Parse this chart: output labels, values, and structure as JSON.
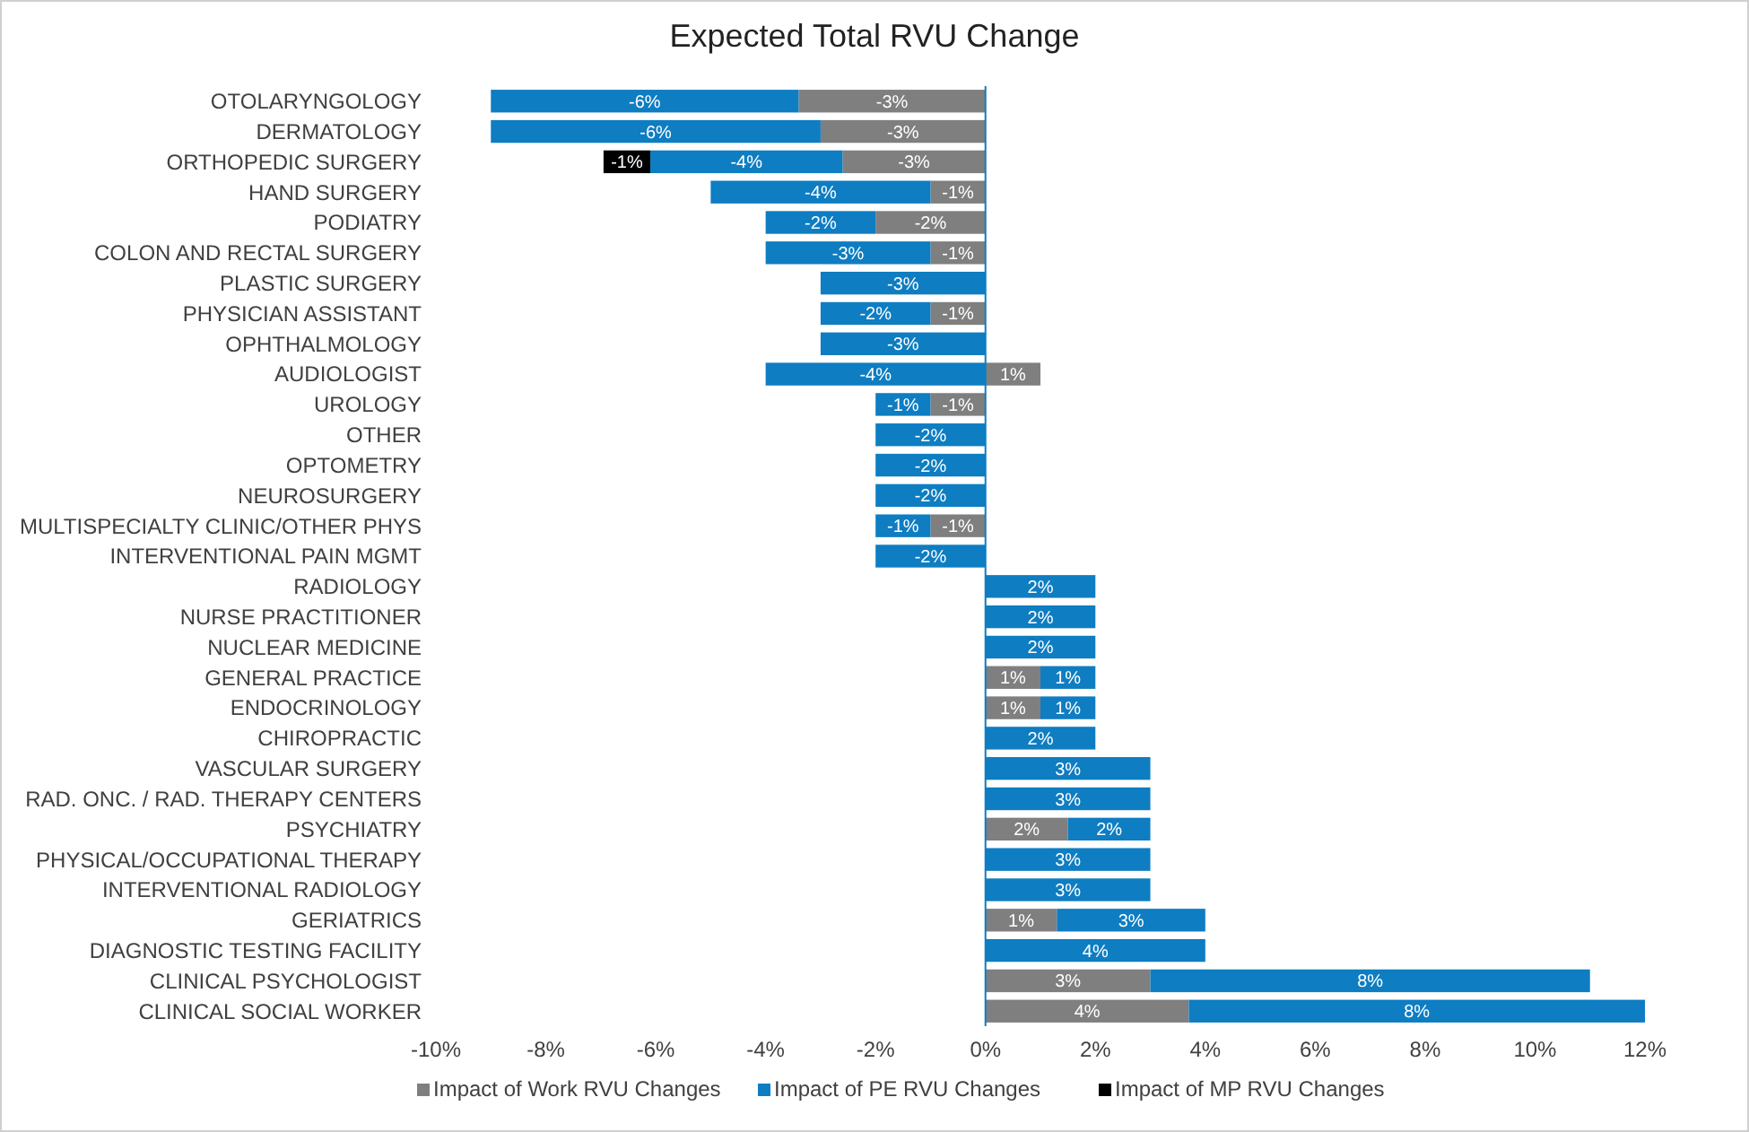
{
  "chart_data": {
    "type": "bar",
    "orientation": "horizontal",
    "stacked": true,
    "title": "Expected Total RVU Change",
    "categories": [
      "OTOLARYNGOLOGY",
      "DERMATOLOGY",
      "ORTHOPEDIC SURGERY",
      "HAND SURGERY",
      "PODIATRY",
      "COLON AND RECTAL SURGERY",
      "PLASTIC SURGERY",
      "PHYSICIAN ASSISTANT",
      "OPHTHALMOLOGY",
      "AUDIOLOGIST",
      "UROLOGY",
      "OTHER",
      "OPTOMETRY",
      "NEUROSURGERY",
      "MULTISPECIALTY CLINIC/OTHER PHYS",
      "INTERVENTIONAL PAIN MGMT",
      "RADIOLOGY",
      "NURSE PRACTITIONER",
      "NUCLEAR MEDICINE",
      "GENERAL PRACTICE",
      "ENDOCRINOLOGY",
      "CHIROPRACTIC",
      "VASCULAR SURGERY",
      "RAD. ONC. / RAD. THERAPY CENTERS",
      "PSYCHIATRY",
      "PHYSICAL/OCCUPATIONAL THERAPY",
      "INTERVENTIONAL RADIOLOGY",
      "GERIATRICS",
      "DIAGNOSTIC TESTING FACILITY",
      "CLINICAL PSYCHOLOGIST",
      "CLINICAL SOCIAL WORKER"
    ],
    "series": [
      {
        "name": "Impact of Work RVU Changes",
        "color": "#7f7f7f",
        "values": [
          -3.4,
          -3,
          -2.6,
          -1,
          -2,
          -1,
          null,
          -1,
          null,
          1,
          -1,
          null,
          null,
          null,
          -1,
          null,
          null,
          null,
          null,
          1,
          1,
          null,
          null,
          null,
          1.5,
          null,
          null,
          1.3,
          null,
          3,
          3.7
        ],
        "value_labels": [
          "-3%",
          "-3%",
          "-3%",
          "-1%",
          "-2%",
          "-1%",
          null,
          "-1%",
          null,
          "1%",
          "-1%",
          null,
          null,
          null,
          "-1%",
          null,
          null,
          null,
          null,
          "1%",
          "1%",
          null,
          null,
          null,
          "2%",
          null,
          null,
          "1%",
          null,
          "3%",
          "4%"
        ]
      },
      {
        "name": "Impact of PE RVU Changes",
        "color": "#0e7dc2",
        "values": [
          -5.6,
          -6,
          -3.5,
          -4,
          -2,
          -3,
          -3,
          -2,
          -3,
          -4,
          -1,
          -2,
          -2,
          -2,
          -1,
          -2,
          2,
          2,
          2,
          1,
          1,
          2,
          3,
          3,
          1.5,
          3,
          3,
          2.7,
          4,
          8,
          8.3
        ],
        "value_labels": [
          "-6%",
          "-6%",
          "-4%",
          "-4%",
          "-2%",
          "-3%",
          "-3%",
          "-2%",
          "-3%",
          "-4%",
          "-1%",
          "-2%",
          "-2%",
          "-2%",
          "-1%",
          "-2%",
          "2%",
          "2%",
          "2%",
          "1%",
          "1%",
          "2%",
          "3%",
          "3%",
          "2%",
          "3%",
          "3%",
          "3%",
          "4%",
          "8%",
          "8%"
        ]
      },
      {
        "name": "Impact of MP RVU Changes",
        "color": "#000000",
        "values": [
          null,
          null,
          -0.85,
          null,
          null,
          null,
          null,
          null,
          null,
          null,
          null,
          null,
          null,
          null,
          null,
          null,
          null,
          null,
          null,
          null,
          null,
          null,
          null,
          null,
          null,
          null,
          null,
          null,
          null,
          null,
          null
        ],
        "value_labels": [
          null,
          null,
          "-1%",
          null,
          null,
          null,
          null,
          null,
          null,
          null,
          null,
          null,
          null,
          null,
          null,
          null,
          null,
          null,
          null,
          null,
          null,
          null,
          null,
          null,
          null,
          null,
          null,
          null,
          null,
          null,
          null
        ]
      }
    ],
    "xlim": [
      -10,
      12
    ],
    "xticks": [
      {
        "value": -10,
        "label": "-10%"
      },
      {
        "value": -8,
        "label": "-8%"
      },
      {
        "value": -6,
        "label": "-6%"
      },
      {
        "value": -4,
        "label": "-4%"
      },
      {
        "value": -2,
        "label": "-2%"
      },
      {
        "value": 0,
        "label": "0%"
      },
      {
        "value": 2,
        "label": "2%"
      },
      {
        "value": 4,
        "label": "4%"
      },
      {
        "value": 6,
        "label": "6%"
      },
      {
        "value": 8,
        "label": "8%"
      },
      {
        "value": 10,
        "label": "10%"
      },
      {
        "value": 12,
        "label": "12%"
      }
    ],
    "ref_lines": [
      {
        "axis": "x",
        "value": 0,
        "color": "#0e7dc2"
      }
    ],
    "legend": "bottom"
  }
}
